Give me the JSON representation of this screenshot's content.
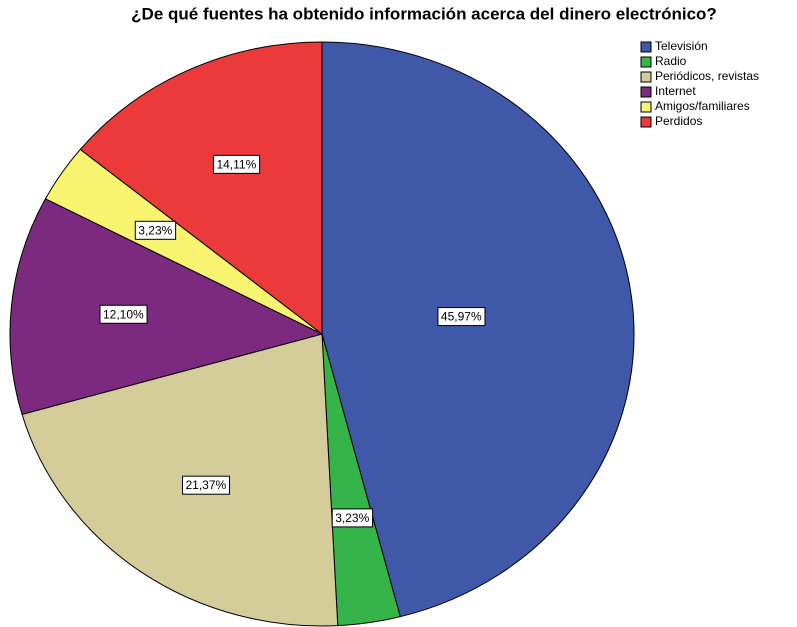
{
  "chart_data": {
    "type": "pie",
    "title": "¿De qué fuentes ha obtenido información acerca del dinero electrónico?",
    "categories": [
      "Televisión",
      "Radio",
      "Periódicos, revistas",
      "Internet",
      "Amigos/familiares",
      "Perdidos"
    ],
    "values": [
      45.97,
      3.23,
      21.37,
      12.1,
      3.23,
      14.11
    ],
    "value_labels": [
      "45,97%",
      "3,23%",
      "21,37%",
      "12,10%",
      "3,23%",
      "14,11%"
    ],
    "colors": [
      "#3f58a8",
      "#35b44a",
      "#d4cc99",
      "#7b2a7f",
      "#f8f46f",
      "#ec3a3a"
    ],
    "legend": "top-right"
  }
}
